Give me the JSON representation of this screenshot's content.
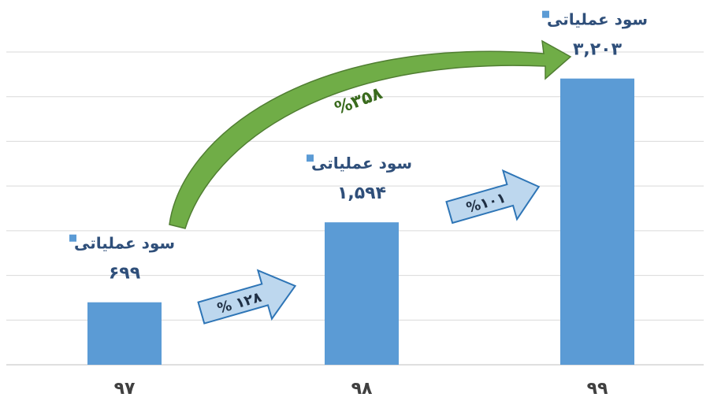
{
  "chart_data": {
    "type": "bar",
    "categories": [
      "۹۷",
      "۹۸",
      "۹۹"
    ],
    "series": [
      {
        "name": "سود عملیاتی",
        "values": [
          699,
          1594,
          3203
        ],
        "value_labels": [
          "۶۹۹",
          "۱,۵۹۴",
          "۳,۲۰۳"
        ],
        "color": "#5b9bd5"
      }
    ],
    "ylim": [
      0,
      3500
    ],
    "grid": true,
    "legend_marker_color": "#5b9bd5",
    "annotations": {
      "growth_97_98": "% ۱۲۸",
      "growth_98_99": "%۱۰۱",
      "growth_97_99": "%۳۵۸"
    },
    "colors": {
      "bar": "#5b9bd5",
      "grid": "#d9d9d9",
      "small_arrow_fill": "#bdd7ee",
      "small_arrow_stroke": "#2e75b6",
      "big_arrow_fill": "#70ad47",
      "big_arrow_stroke": "#507e32"
    }
  }
}
